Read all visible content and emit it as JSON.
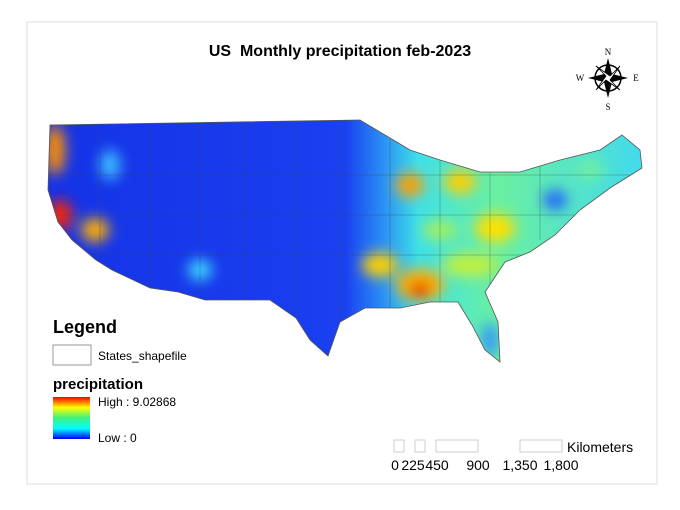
{
  "title": "US  Monthly precipitation feb-2023",
  "compass": {
    "n": "N",
    "s": "S",
    "e": "E",
    "w": "W"
  },
  "legend": {
    "title": "Legend",
    "layers": [
      {
        "label": "States_shapefile"
      }
    ],
    "raster": {
      "name": "precipitation",
      "high": "High : 9.02868",
      "low": "Low : 0"
    }
  },
  "scale_bar": {
    "unit": "Kilometers",
    "labels": [
      "0",
      "225",
      "450",
      "900",
      "1,350",
      "1,800"
    ]
  }
}
